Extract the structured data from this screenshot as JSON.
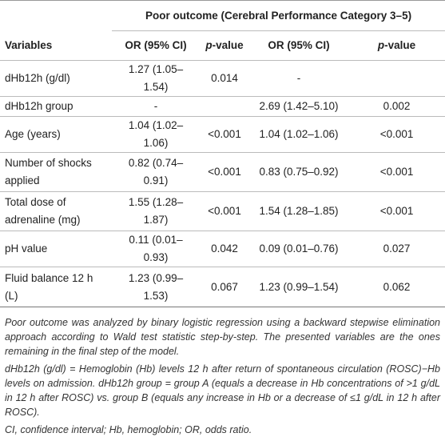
{
  "table": {
    "group_header": "Poor outcome (Cerebral Performance Category 3–5)",
    "columns": [
      "Variables",
      "OR (95% CI)",
      "p-value",
      "OR (95% CI)",
      "p-value"
    ],
    "rows": [
      [
        "dHb12h (g/dl)",
        "1.27 (1.05–1.54)",
        "0.014",
        "-",
        ""
      ],
      [
        "dHb12h group",
        "-",
        "",
        "2.69 (1.42–5.10)",
        "0.002"
      ],
      [
        "Age (years)",
        "1.04 (1.02–1.06)",
        "<0.001",
        "1.04 (1.02–1.06)",
        "<0.001"
      ],
      [
        "Number of shocks applied",
        "0.82 (0.74–0.91)",
        "<0.001",
        "0.83 (0.75–0.92)",
        "<0.001"
      ],
      [
        "Total dose of adrenaline (mg)",
        "1.55 (1.28–1.87)",
        "<0.001",
        "1.54 (1.28–1.85)",
        "<0.001"
      ],
      [
        "pH value",
        "0.11 (0.01–0.93)",
        "0.042",
        "0.09 (0.01–0.76)",
        "0.027"
      ],
      [
        "Fluid balance 12 h (L)",
        "1.23 (0.99–1.53)",
        "0.067",
        "1.23 (0.99–1.54)",
        "0.062"
      ]
    ]
  },
  "footnotes": [
    "Poor outcome was analyzed by binary logistic regression using a backward stepwise elimination approach according to Wald test statistic step-by-step. The presented variables are the ones remaining in the final step of the model.",
    "dHb12h (g/dl) = Hemoglobin (Hb) levels 12 h after return of spontaneous circulation (ROSC)−Hb levels on admission. dHb12h group = group A (equals a decrease in Hb concentrations of >1 g/dL in 12 h after ROSC) vs. group B (equals any increase in Hb or a decrease of ≤1 g/dL in 12 h after ROSC).",
    "CI, confidence interval; Hb, hemoglobin; OR, odds ratio."
  ]
}
